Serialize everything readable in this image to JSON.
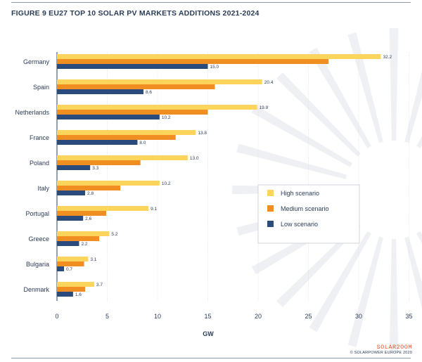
{
  "title": "FIGURE 9 EU27 TOP 10 SOLAR PV MARKETS ADDITIONS 2021-2024",
  "brand": {
    "logo": "SOLAR2OOM",
    "copyright": "© SOLARPOWER EUROPE 2020"
  },
  "colors": {
    "high": "#fdd55c",
    "medium": "#f18e21",
    "low": "#2a4b7c",
    "axis": "#2b3c57",
    "grid": "#d3d8e0",
    "sunburst": "#eef0f4"
  },
  "chart_data": {
    "type": "bar",
    "orientation": "horizontal",
    "categories": [
      "Germany",
      "Spain",
      "Netherlands",
      "France",
      "Poland",
      "Italy",
      "Portugal",
      "Greece",
      "Bulgaria",
      "Denmark"
    ],
    "series": [
      {
        "name": "High scenario",
        "key": "high",
        "values": [
          32.2,
          20.4,
          19.9,
          13.8,
          13.0,
          10.2,
          9.1,
          5.2,
          3.1,
          3.7
        ],
        "labels": [
          "32.2",
          "20.4",
          "19.9",
          "13.8",
          "13.0",
          "10.2",
          "9.1",
          "5.2",
          "3.1",
          "3.7"
        ]
      },
      {
        "name": "Medium scenario",
        "key": "medium",
        "values": [
          27.0,
          15.7,
          15.0,
          11.8,
          8.3,
          6.3,
          4.9,
          4.2,
          2.7,
          2.8
        ],
        "labels": null
      },
      {
        "name": "Low scenario",
        "key": "low",
        "values": [
          15.0,
          8.6,
          10.2,
          8.0,
          3.3,
          2.8,
          2.6,
          2.2,
          0.7,
          1.6
        ],
        "labels": [
          "15.0",
          "8.6",
          "10.2",
          "8.0",
          "3.3",
          "2.8",
          "2.6",
          "2.2",
          "0.7",
          "1.6"
        ]
      }
    ],
    "xlabel": "GW",
    "xlim": [
      0,
      35
    ],
    "xticks": [
      0,
      5,
      10,
      15,
      20,
      25,
      30,
      35
    ],
    "xtick_labels": [
      "0",
      "5",
      "10",
      "15",
      "20",
      "25",
      "30",
      "35"
    ],
    "grid": true,
    "legend_position": "right"
  }
}
